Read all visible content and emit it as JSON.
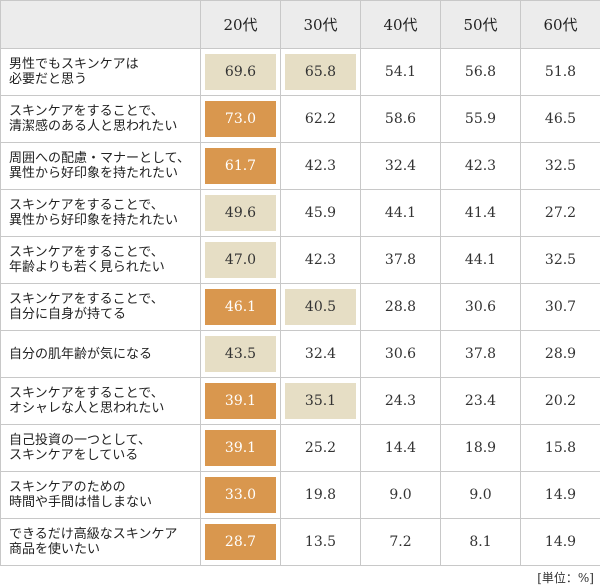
{
  "chart_data": {
    "type": "table",
    "columns": [
      "20代",
      "30代",
      "40代",
      "50代",
      "60代"
    ],
    "unit": "[単位：%]",
    "colors": {
      "highlight_strong": "#d9974e",
      "highlight_light": "#e6dec5",
      "header_bg": "#ececec",
      "border": "#c8c8c8"
    },
    "rows": [
      {
        "label": "男性でもスキンケアは\n必要だと思う",
        "values": [
          69.6,
          65.8,
          54.1,
          56.8,
          51.8
        ],
        "highlight": [
          "light",
          "light",
          "",
          "",
          ""
        ]
      },
      {
        "label": "スキンケアをすることで、\n清潔感のある人と思われたい",
        "values": [
          73.0,
          62.2,
          58.6,
          55.9,
          46.5
        ],
        "highlight": [
          "strong",
          "",
          "",
          "",
          ""
        ]
      },
      {
        "label": "周囲への配慮・マナーとして、\n異性から好印象を持たれたい",
        "values": [
          61.7,
          42.3,
          32.4,
          42.3,
          32.5
        ],
        "highlight": [
          "strong",
          "",
          "",
          "",
          ""
        ]
      },
      {
        "label": "スキンケアをすることで、\n異性から好印象を持たれたい",
        "values": [
          49.6,
          45.9,
          44.1,
          41.4,
          27.2
        ],
        "highlight": [
          "light",
          "",
          "",
          "",
          ""
        ]
      },
      {
        "label": "スキンケアをすることで、\n年齢よりも若く見られたい",
        "values": [
          47.0,
          42.3,
          37.8,
          44.1,
          32.5
        ],
        "highlight": [
          "light",
          "",
          "",
          "",
          ""
        ]
      },
      {
        "label": "スキンケアをすることで、\n自分に自身が持てる",
        "values": [
          46.1,
          40.5,
          28.8,
          30.6,
          30.7
        ],
        "highlight": [
          "strong",
          "light",
          "",
          "",
          ""
        ]
      },
      {
        "label": "自分の肌年齢が気になる",
        "values": [
          43.5,
          32.4,
          30.6,
          37.8,
          28.9
        ],
        "highlight": [
          "light",
          "",
          "",
          "",
          ""
        ]
      },
      {
        "label": "スキンケアをすることで、\nオシャレな人と思われたい",
        "values": [
          39.1,
          35.1,
          24.3,
          23.4,
          20.2
        ],
        "highlight": [
          "strong",
          "light",
          "",
          "",
          ""
        ]
      },
      {
        "label": "自己投資の一つとして、\nスキンケアをしている",
        "values": [
          39.1,
          25.2,
          14.4,
          18.9,
          15.8
        ],
        "highlight": [
          "strong",
          "",
          "",
          "",
          ""
        ]
      },
      {
        "label": "スキンケアのための\n時間や手間は惜しまない",
        "values": [
          33.0,
          19.8,
          9.0,
          9.0,
          14.9
        ],
        "highlight": [
          "strong",
          "",
          "",
          "",
          ""
        ]
      },
      {
        "label": "できるだけ高級なスキンケア\n商品を使いたい",
        "values": [
          28.7,
          13.5,
          7.2,
          8.1,
          14.9
        ],
        "highlight": [
          "strong",
          "",
          "",
          "",
          ""
        ]
      }
    ]
  }
}
